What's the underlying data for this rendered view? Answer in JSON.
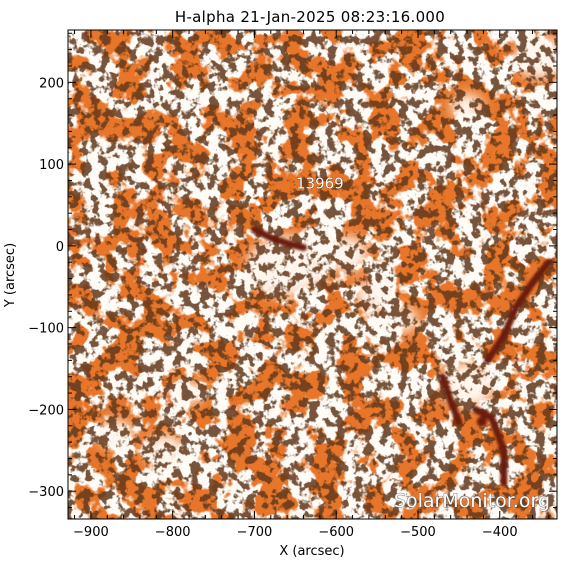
{
  "title": "H-alpha 21-Jan-2025 08:23:16.000",
  "xaxis": {
    "label": "X (arcsec)",
    "range": [
      -928,
      -330
    ],
    "ticks": [
      -900,
      -800,
      -700,
      -600,
      -500,
      -400
    ],
    "tick_labels": [
      "−900",
      "−800",
      "−700",
      "−600",
      "−500",
      "−400"
    ]
  },
  "yaxis": {
    "label": "Y (arcsec)",
    "range": [
      -334,
      264
    ],
    "ticks": [
      200,
      100,
      0,
      -100,
      -200,
      -300
    ],
    "tick_labels": [
      "200",
      "100",
      "0",
      "−100",
      "−200",
      "−300"
    ]
  },
  "region_label": {
    "text": "13969",
    "x": -620,
    "y": 70
  },
  "watermark": "SolarMonitor.org",
  "colors": {
    "chromosphere": "#e8762a",
    "plage": "#fff6ee",
    "filament": "#6a1d08",
    "speckle": "#1e0a02",
    "axes": "#000000",
    "background": "#ffffff"
  },
  "image_features": {
    "plage_centers": [
      [
        -662,
        -25
      ],
      [
        -588,
        -10
      ],
      [
        -555,
        -60
      ],
      [
        -520,
        -90
      ],
      [
        -440,
        -170
      ],
      [
        -870,
        -230
      ],
      [
        -810,
        -250
      ],
      [
        -780,
        -180
      ],
      [
        -350,
        230
      ],
      [
        -440,
        170
      ]
    ],
    "filaments": [
      [
        [
          -700,
          20
        ],
        [
          -680,
          10
        ],
        [
          -660,
          3
        ],
        [
          -640,
          -2
        ]
      ],
      [
        [
          -415,
          -140
        ],
        [
          -395,
          -110
        ],
        [
          -380,
          -75
        ],
        [
          -360,
          -45
        ],
        [
          -340,
          -20
        ]
      ],
      [
        [
          -430,
          -200
        ],
        [
          -410,
          -210
        ],
        [
          -395,
          -250
        ],
        [
          -395,
          -290
        ]
      ],
      [
        [
          -470,
          -160
        ],
        [
          -460,
          -190
        ],
        [
          -450,
          -215
        ]
      ]
    ],
    "dark_knot": [
      -422,
      -215
    ]
  }
}
